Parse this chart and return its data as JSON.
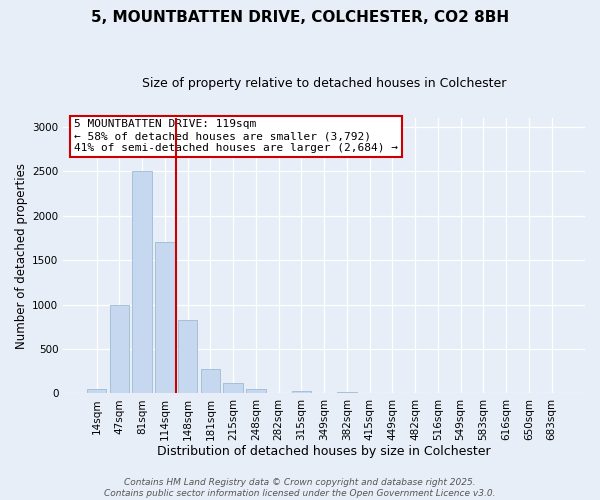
{
  "title": "5, MOUNTBATTEN DRIVE, COLCHESTER, CO2 8BH",
  "subtitle": "Size of property relative to detached houses in Colchester",
  "xlabel": "Distribution of detached houses by size in Colchester",
  "ylabel": "Number of detached properties",
  "bar_labels": [
    "14sqm",
    "47sqm",
    "81sqm",
    "114sqm",
    "148sqm",
    "181sqm",
    "215sqm",
    "248sqm",
    "282sqm",
    "315sqm",
    "349sqm",
    "382sqm",
    "415sqm",
    "449sqm",
    "482sqm",
    "516sqm",
    "549sqm",
    "583sqm",
    "616sqm",
    "650sqm",
    "683sqm"
  ],
  "bar_values": [
    50,
    1000,
    2500,
    1700,
    830,
    270,
    120,
    50,
    0,
    30,
    0,
    10,
    0,
    0,
    0,
    0,
    0,
    0,
    0,
    0,
    0
  ],
  "bar_color": "#c6d8ef",
  "bar_edge_color": "#9dbcd4",
  "vline_x": 3.5,
  "vline_color": "#cc0000",
  "annotation_line1": "5 MOUNTBATTEN DRIVE: 119sqm",
  "annotation_line2": "← 58% of detached houses are smaller (3,792)",
  "annotation_line3": "41% of semi-detached houses are larger (2,684) →",
  "annotation_box_color": "#cc0000",
  "annotation_box_bg": "#ffffff",
  "annotation_fontsize": 8.0,
  "ylim": [
    0,
    3100
  ],
  "yticks": [
    0,
    500,
    1000,
    1500,
    2000,
    2500,
    3000
  ],
  "footer_line1": "Contains HM Land Registry data © Crown copyright and database right 2025.",
  "footer_line2": "Contains public sector information licensed under the Open Government Licence v3.0.",
  "title_fontsize": 11,
  "subtitle_fontsize": 9,
  "xlabel_fontsize": 9,
  "ylabel_fontsize": 8.5,
  "tick_fontsize": 7.5,
  "footer_fontsize": 6.5,
  "bg_color": "#e8eef8"
}
